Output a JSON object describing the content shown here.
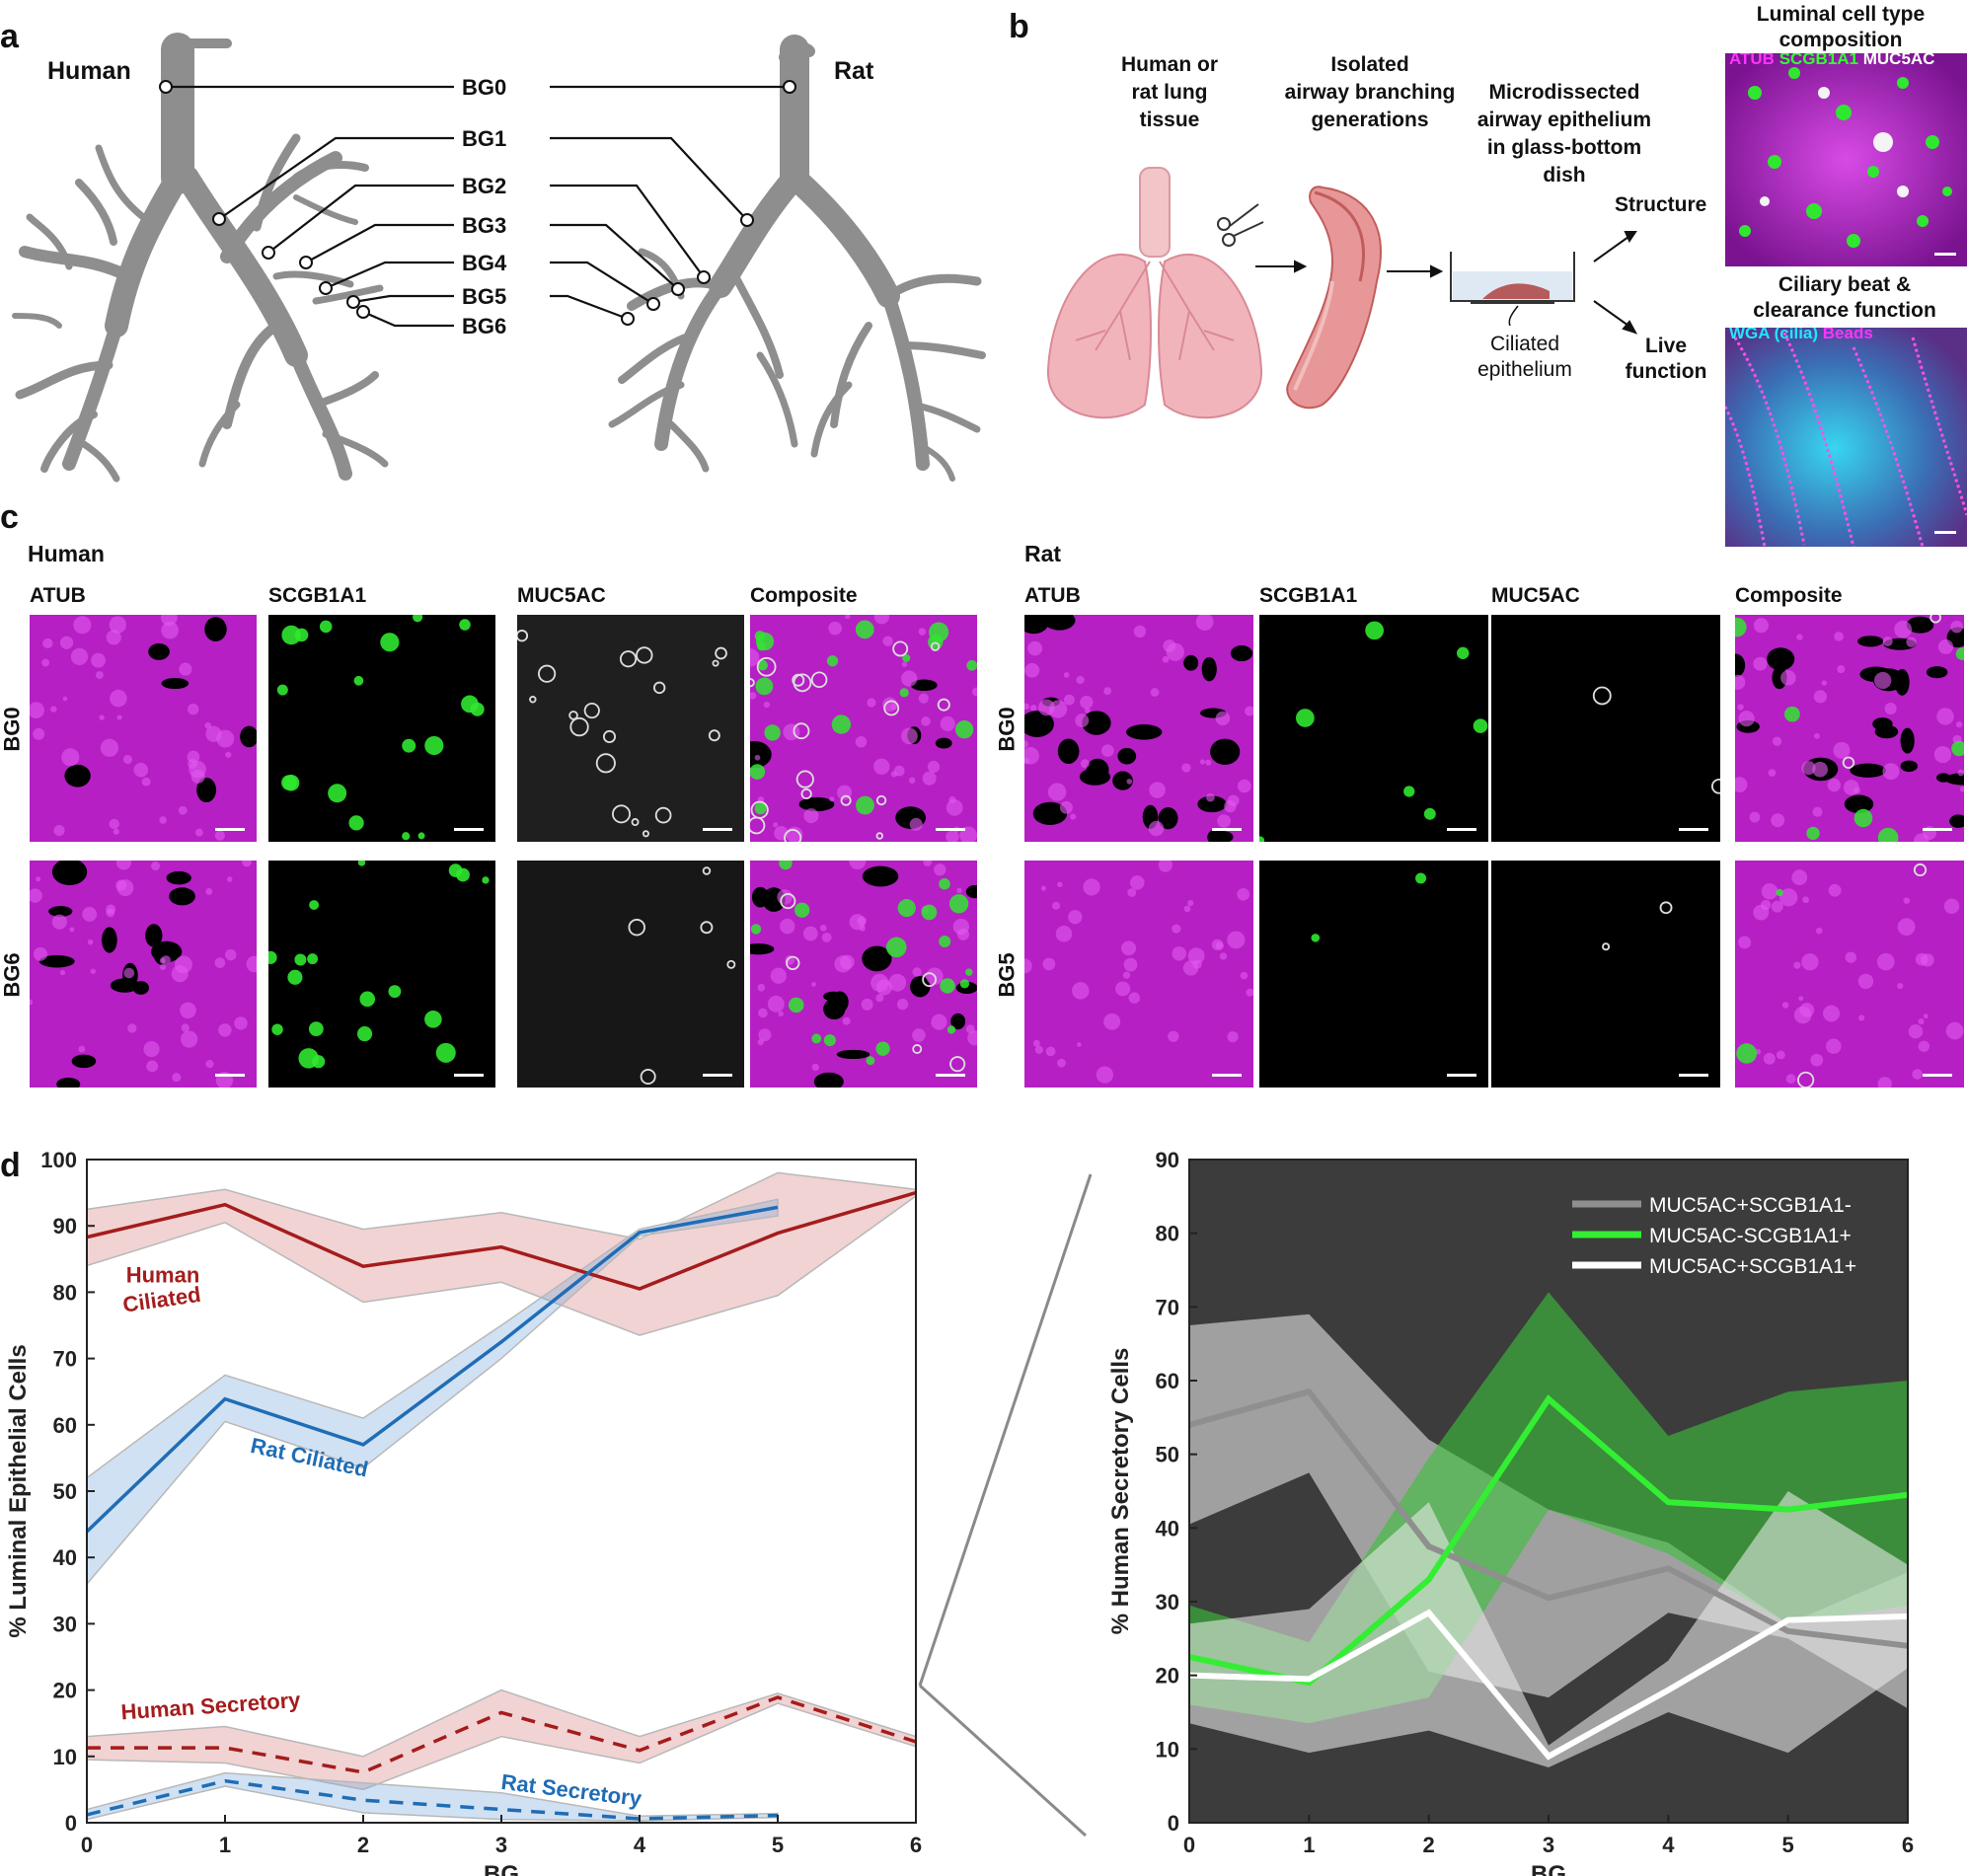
{
  "panel_a": {
    "letter": "a",
    "left_title": "Human",
    "right_title": "Rat",
    "bg_labels": [
      "BG0",
      "BG1",
      "BG2",
      "BG3",
      "BG4",
      "BG5",
      "BG6"
    ]
  },
  "panel_b": {
    "letter": "b",
    "step1": [
      "Human or",
      "rat lung",
      "tissue"
    ],
    "step2": [
      "Isolated",
      "airway branching",
      "generations"
    ],
    "step3": [
      "Microdissected",
      "airway epithelium",
      "in glass-bottom",
      "dish"
    ],
    "dish_label": [
      "Ciliated",
      "epithelium"
    ],
    "structure_label": "Structure",
    "live_label": [
      "Live",
      "function"
    ],
    "top_title": [
      "Luminal cell type",
      "composition"
    ],
    "top_channels": [
      {
        "text": "ATUB",
        "color": "#ff33ff"
      },
      {
        "text": "SCGB1A1",
        "color": "#33ff33"
      },
      {
        "text": "MUC5AC",
        "color": "#ffffff"
      }
    ],
    "bottom_title": [
      "Ciliary beat &",
      "clearance function"
    ],
    "bottom_channels": [
      {
        "text": "WGA (cilia)",
        "color": "#22e6ff"
      },
      {
        "text": "Beads",
        "color": "#ff33ff"
      }
    ]
  },
  "panel_c": {
    "letter": "c",
    "human_title": "Human",
    "rat_title": "Rat",
    "channels": [
      "ATUB",
      "SCGB1A1",
      "MUC5AC",
      "Composite"
    ],
    "human_rows": [
      "BG0",
      "BG6"
    ],
    "rat_rows": [
      "BG0",
      "BG5"
    ]
  },
  "chart_data": [
    {
      "type": "line",
      "panel": "d",
      "letter": "d",
      "xlabel": "BG",
      "ylabel": "% Luminal Epithelial Cells",
      "xlim": [
        0,
        6
      ],
      "ylim": [
        0,
        100
      ],
      "xticks": [
        0,
        1,
        2,
        3,
        4,
        5,
        6
      ],
      "yticks": [
        0,
        10,
        20,
        30,
        40,
        50,
        60,
        70,
        80,
        90,
        100
      ],
      "series": [
        {
          "name": "Human Ciliated",
          "color": "#a51c1c",
          "dash": false,
          "x": [
            0,
            1,
            2,
            3,
            4,
            5,
            6
          ],
          "y": [
            88.3,
            93.2,
            83.9,
            86.8,
            80.5,
            88.9,
            95.0
          ],
          "lower": [
            84.0,
            90.5,
            78.5,
            81.5,
            73.5,
            79.5,
            94.5
          ],
          "upper": [
            92.5,
            95.5,
            89.5,
            92.0,
            88.0,
            98.0,
            95.5
          ]
        },
        {
          "name": "Rat Ciliated",
          "color": "#1f6db5",
          "dash": false,
          "x": [
            0,
            1,
            2,
            3,
            4,
            5
          ],
          "y": [
            43.9,
            63.9,
            57.0,
            72.5,
            89.0,
            92.8
          ],
          "lower": [
            36.0,
            60.5,
            53.5,
            70.0,
            88.5,
            91.5
          ],
          "upper": [
            52.0,
            67.5,
            61.0,
            75.0,
            89.5,
            94.0
          ]
        },
        {
          "name": "Human Secretory",
          "color": "#a51c1c",
          "dash": true,
          "x": [
            0,
            1,
            2,
            3,
            4,
            5,
            6
          ],
          "y": [
            11.3,
            11.3,
            7.6,
            16.6,
            10.9,
            18.9,
            12.2
          ],
          "lower": [
            9.5,
            9.0,
            5.0,
            13.0,
            9.0,
            18.0,
            11.5
          ],
          "upper": [
            13.0,
            14.5,
            10.0,
            20.0,
            13.0,
            19.5,
            13.0
          ]
        },
        {
          "name": "Rat Secretory",
          "color": "#1f6db5",
          "dash": true,
          "x": [
            0,
            1,
            2,
            3,
            4,
            5
          ],
          "y": [
            1.2,
            6.3,
            3.4,
            2.0,
            0.6,
            1.1
          ],
          "lower": [
            0.5,
            5.5,
            1.5,
            0.5,
            0.3,
            0.8
          ],
          "upper": [
            2.0,
            7.5,
            6.0,
            4.5,
            1.0,
            1.4
          ]
        }
      ],
      "annotations": [
        {
          "text": "Human",
          "x": 0.55,
          "y": 81.5,
          "color": "#a51c1c",
          "rotate": 0
        },
        {
          "text": "Ciliated",
          "x": 0.55,
          "y": 77.8,
          "color": "#a51c1c",
          "rotate": -8
        },
        {
          "text": "Rat Ciliated",
          "x": 1.6,
          "y": 54.0,
          "color": "#1f6db5",
          "rotate": 12
        },
        {
          "text": "Human Secretory",
          "x": 0.9,
          "y": 16.5,
          "color": "#a51c1c",
          "rotate": -4
        },
        {
          "text": "Rat Secretory",
          "x": 3.5,
          "y": 3.8,
          "color": "#1f6db5",
          "rotate": 7
        }
      ],
      "grid": false
    },
    {
      "type": "line",
      "panel": "d-right",
      "xlabel": "BG",
      "ylabel": "% Human Secretory Cells",
      "xlim": [
        0,
        6
      ],
      "ylim": [
        0,
        90
      ],
      "xticks": [
        0,
        1,
        2,
        3,
        4,
        5,
        6
      ],
      "yticks": [
        0,
        10,
        20,
        30,
        40,
        50,
        60,
        70,
        80,
        90
      ],
      "background": "#3c3c3c",
      "legend_placement": "top-right",
      "series": [
        {
          "name": "MUC5AC+SCGB1A1-",
          "color": "#8f8f8f",
          "band": "rgba(200,200,200,0.72)",
          "x": [
            0,
            1,
            2,
            3,
            4,
            5,
            6
          ],
          "y": [
            54.0,
            58.5,
            37.5,
            30.5,
            34.5,
            26.0,
            24.0
          ],
          "lower": [
            40.5,
            47.5,
            20.5,
            17.0,
            28.5,
            25.0,
            15.5
          ],
          "upper": [
            67.5,
            69.0,
            52.0,
            42.5,
            38.0,
            27.0,
            34.0
          ]
        },
        {
          "name": "MUC5AC-SCGB1A1+",
          "color": "#33ee33",
          "band": "rgba(60,190,60,0.62)",
          "x": [
            0,
            1,
            2,
            3,
            4,
            5,
            6
          ],
          "y": [
            22.5,
            19.0,
            33.0,
            57.5,
            43.5,
            42.5,
            44.5
          ],
          "lower": [
            16.0,
            13.5,
            17.0,
            42.5,
            36.5,
            27.0,
            29.5
          ],
          "upper": [
            29.5,
            24.5,
            49.5,
            72.0,
            52.5,
            58.5,
            60.0
          ]
        },
        {
          "name": "MUC5AC+SCGB1A1+",
          "color": "#ffffff",
          "band": "rgba(235,235,235,0.58)",
          "x": [
            0,
            1,
            2,
            3,
            4,
            5,
            6
          ],
          "y": [
            20.0,
            19.5,
            28.5,
            9.0,
            18.0,
            27.5,
            28.0
          ],
          "lower": [
            13.5,
            9.5,
            12.5,
            7.5,
            15.0,
            9.5,
            21.0
          ],
          "upper": [
            27.0,
            29.0,
            43.5,
            10.5,
            22.0,
            45.0,
            35.0
          ]
        }
      ],
      "grid": false
    }
  ]
}
